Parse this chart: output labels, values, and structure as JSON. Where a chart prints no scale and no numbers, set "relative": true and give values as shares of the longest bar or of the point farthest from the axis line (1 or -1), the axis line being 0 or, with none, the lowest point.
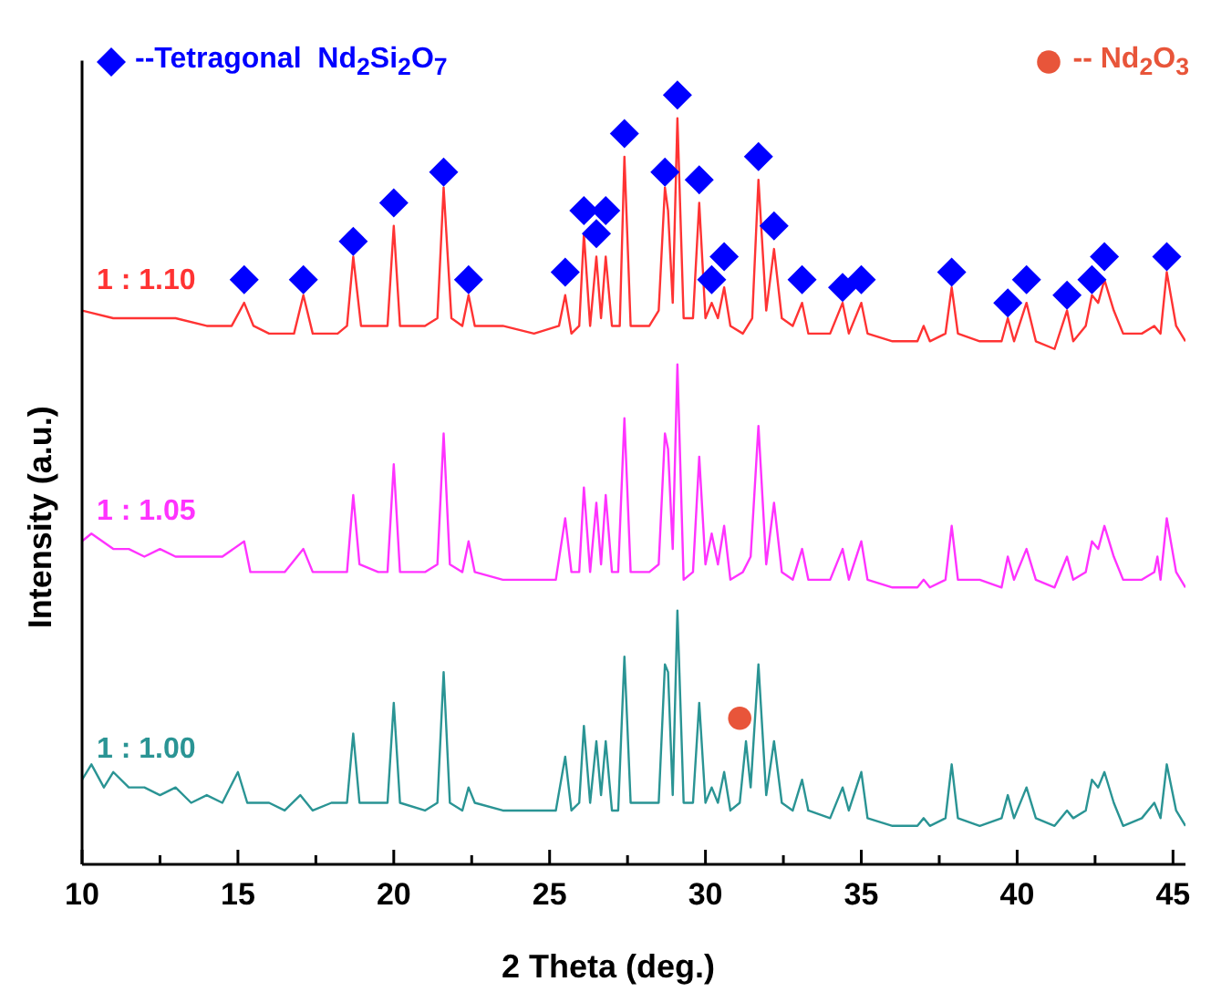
{
  "chart_data": {
    "type": "line",
    "relative": true,
    "xlabel": "2 Theta (deg.)",
    "ylabel": "Intensity (a.u.)",
    "xlim": [
      10,
      45.4
    ],
    "xticks": [
      10,
      {
        "value": 12.5,
        "label": null
      },
      15,
      {
        "value": 17.5,
        "label": null
      },
      20,
      {
        "value": 22.5,
        "label": null
      },
      25,
      {
        "value": 27.5,
        "label": null
      },
      30,
      {
        "value": 32.5,
        "label": null
      },
      35,
      {
        "value": 37.5,
        "label": null
      },
      40,
      {
        "value": 42.5,
        "label": null
      },
      45
    ],
    "legend": "top",
    "grid": false,
    "line_style": "solid",
    "series": [
      {
        "name": "1 : 1.00",
        "color": "#2a9494",
        "x": [
          10,
          10.3,
          10.7,
          11,
          11.5,
          12,
          12.5,
          13,
          13.5,
          14,
          14.5,
          15.0,
          15.3,
          16,
          16.5,
          17,
          17.4,
          18,
          18.5,
          18.7,
          18.9,
          19.5,
          19.8,
          20.0,
          20.2,
          21,
          21.4,
          21.6,
          21.8,
          22.2,
          22.4,
          22.6,
          23.5,
          24.5,
          25.2,
          25.5,
          25.7,
          25.95,
          26.1,
          26.3,
          26.5,
          26.65,
          26.8,
          27.0,
          27.2,
          27.4,
          27.6,
          28.2,
          28.5,
          28.7,
          28.8,
          28.95,
          29.1,
          29.3,
          29.6,
          29.8,
          30.0,
          30.2,
          30.4,
          30.6,
          30.8,
          31.1,
          31.3,
          31.45,
          31.7,
          31.95,
          32.2,
          32.45,
          32.8,
          33.1,
          33.3,
          34.0,
          34.4,
          34.6,
          35.0,
          35.2,
          36,
          36.8,
          37.0,
          37.2,
          37.7,
          37.9,
          38.1,
          38.8,
          39.5,
          39.7,
          39.9,
          40.3,
          40.6,
          41.2,
          41.6,
          41.8,
          42.2,
          42.4,
          42.6,
          42.8,
          43.1,
          43.4,
          44.0,
          44.4,
          44.6,
          44.8,
          45.1,
          45.4
        ],
        "values": [
          0.11,
          0.13,
          0.1,
          0.12,
          0.1,
          0.1,
          0.09,
          0.1,
          0.08,
          0.09,
          0.08,
          0.12,
          0.08,
          0.08,
          0.07,
          0.09,
          0.07,
          0.08,
          0.08,
          0.17,
          0.08,
          0.08,
          0.08,
          0.21,
          0.08,
          0.07,
          0.08,
          0.25,
          0.08,
          0.07,
          0.1,
          0.08,
          0.07,
          0.07,
          0.07,
          0.14,
          0.07,
          0.08,
          0.18,
          0.08,
          0.16,
          0.09,
          0.16,
          0.07,
          0.07,
          0.27,
          0.08,
          0.08,
          0.08,
          0.26,
          0.25,
          0.09,
          0.33,
          0.08,
          0.08,
          0.21,
          0.08,
          0.1,
          0.08,
          0.12,
          0.07,
          0.08,
          0.16,
          0.1,
          0.26,
          0.09,
          0.16,
          0.08,
          0.07,
          0.11,
          0.07,
          0.06,
          0.1,
          0.07,
          0.12,
          0.06,
          0.05,
          0.05,
          0.06,
          0.05,
          0.06,
          0.13,
          0.06,
          0.05,
          0.06,
          0.09,
          0.06,
          0.1,
          0.06,
          0.05,
          0.07,
          0.06,
          0.07,
          0.11,
          0.1,
          0.12,
          0.08,
          0.05,
          0.06,
          0.08,
          0.06,
          0.13,
          0.07,
          0.05
        ]
      },
      {
        "name": "1 : 1.05",
        "color": "#ff33ff",
        "x": [
          10,
          10.3,
          11,
          11.5,
          12,
          12.5,
          13,
          13.5,
          14,
          14.5,
          15.2,
          15.4,
          16,
          16.5,
          17.1,
          17.4,
          18,
          18.5,
          18.7,
          18.9,
          19.5,
          19.8,
          20.0,
          20.2,
          21,
          21.4,
          21.6,
          21.8,
          22.2,
          22.4,
          22.6,
          23.5,
          24.5,
          25.2,
          25.5,
          25.7,
          25.95,
          26.1,
          26.3,
          26.5,
          26.65,
          26.8,
          27.0,
          27.2,
          27.4,
          27.6,
          28.2,
          28.5,
          28.7,
          28.8,
          28.95,
          29.1,
          29.3,
          29.6,
          29.8,
          30.0,
          30.2,
          30.4,
          30.6,
          30.8,
          31.2,
          31.45,
          31.7,
          31.95,
          32.2,
          32.45,
          32.8,
          33.1,
          33.3,
          34.0,
          34.4,
          34.6,
          35.0,
          35.2,
          36,
          36.8,
          37.0,
          37.2,
          37.7,
          37.9,
          38.1,
          38.8,
          39.5,
          39.7,
          39.9,
          40.3,
          40.6,
          41.2,
          41.6,
          41.8,
          42.2,
          42.4,
          42.6,
          42.8,
          43.1,
          43.4,
          44.0,
          44.4,
          44.5,
          44.6,
          44.8,
          45.1,
          45.4
        ],
        "values": [
          0.42,
          0.43,
          0.41,
          0.41,
          0.4,
          0.41,
          0.4,
          0.4,
          0.4,
          0.4,
          0.42,
          0.38,
          0.38,
          0.38,
          0.41,
          0.38,
          0.38,
          0.38,
          0.48,
          0.39,
          0.38,
          0.38,
          0.52,
          0.38,
          0.38,
          0.39,
          0.56,
          0.39,
          0.38,
          0.42,
          0.38,
          0.37,
          0.37,
          0.37,
          0.45,
          0.38,
          0.38,
          0.49,
          0.38,
          0.47,
          0.39,
          0.48,
          0.38,
          0.38,
          0.58,
          0.38,
          0.38,
          0.39,
          0.56,
          0.54,
          0.41,
          0.65,
          0.37,
          0.38,
          0.53,
          0.39,
          0.43,
          0.39,
          0.44,
          0.37,
          0.38,
          0.4,
          0.57,
          0.39,
          0.47,
          0.38,
          0.37,
          0.41,
          0.37,
          0.37,
          0.41,
          0.37,
          0.42,
          0.37,
          0.36,
          0.36,
          0.37,
          0.36,
          0.37,
          0.44,
          0.37,
          0.37,
          0.36,
          0.4,
          0.37,
          0.41,
          0.37,
          0.36,
          0.4,
          0.37,
          0.38,
          0.42,
          0.41,
          0.44,
          0.4,
          0.37,
          0.37,
          0.38,
          0.4,
          0.37,
          0.45,
          0.38,
          0.36
        ]
      },
      {
        "name": "1 : 1.10",
        "color": "#ff3333",
        "x": [
          10,
          11,
          12,
          13,
          14,
          14.8,
          15.2,
          15.5,
          16,
          16.8,
          17.1,
          17.4,
          18.2,
          18.5,
          18.7,
          18.95,
          19.5,
          19.8,
          20.0,
          20.2,
          21.0,
          21.4,
          21.6,
          21.85,
          22.2,
          22.4,
          22.6,
          23.5,
          24.5,
          25.3,
          25.5,
          25.7,
          25.95,
          26.1,
          26.3,
          26.5,
          26.65,
          26.8,
          27.0,
          27.25,
          27.4,
          27.6,
          28.2,
          28.5,
          28.7,
          28.8,
          28.95,
          29.1,
          29.3,
          29.6,
          29.8,
          30.0,
          30.2,
          30.4,
          30.6,
          30.8,
          31.2,
          31.5,
          31.7,
          31.95,
          32.2,
          32.45,
          32.8,
          33.1,
          33.3,
          34.0,
          34.4,
          34.6,
          35.0,
          35.2,
          36,
          36.8,
          37.0,
          37.2,
          37.7,
          37.9,
          38.1,
          38.8,
          39.5,
          39.7,
          39.9,
          40.3,
          40.6,
          41.2,
          41.6,
          41.8,
          42.2,
          42.4,
          42.6,
          42.8,
          43.1,
          43.4,
          44.0,
          44.4,
          44.6,
          44.8,
          45.1,
          45.4
        ],
        "values": [
          0.72,
          0.71,
          0.71,
          0.71,
          0.7,
          0.7,
          0.73,
          0.7,
          0.69,
          0.69,
          0.74,
          0.69,
          0.69,
          0.7,
          0.79,
          0.7,
          0.7,
          0.7,
          0.83,
          0.7,
          0.7,
          0.71,
          0.88,
          0.71,
          0.7,
          0.74,
          0.7,
          0.7,
          0.69,
          0.7,
          0.74,
          0.69,
          0.7,
          0.82,
          0.7,
          0.79,
          0.71,
          0.79,
          0.7,
          0.7,
          0.92,
          0.7,
          0.7,
          0.72,
          0.88,
          0.85,
          0.73,
          0.97,
          0.71,
          0.71,
          0.86,
          0.71,
          0.73,
          0.71,
          0.75,
          0.7,
          0.69,
          0.71,
          0.89,
          0.72,
          0.8,
          0.71,
          0.7,
          0.73,
          0.69,
          0.69,
          0.73,
          0.69,
          0.73,
          0.69,
          0.68,
          0.68,
          0.7,
          0.68,
          0.69,
          0.75,
          0.69,
          0.68,
          0.68,
          0.71,
          0.68,
          0.73,
          0.68,
          0.67,
          0.72,
          0.68,
          0.7,
          0.74,
          0.73,
          0.76,
          0.72,
          0.69,
          0.69,
          0.7,
          0.69,
          0.77,
          0.7,
          0.68
        ]
      },
      {
        "type": "scatter",
        "name": "--Tetragonal  Nd$_{2}$Si$_{2}$O$_{7}$",
        "color": "#0000ff",
        "marker": "diamond",
        "x": [
          15.2,
          17.1,
          18.7,
          20.0,
          21.6,
          22.4,
          25.5,
          26.1,
          26.5,
          26.8,
          27.4,
          28.7,
          29.1,
          29.8,
          30.2,
          30.6,
          31.7,
          32.2,
          33.1,
          34.4,
          35.0,
          37.9,
          39.7,
          40.3,
          41.6,
          42.4,
          42.8,
          44.8
        ],
        "values": [
          0.76,
          0.76,
          0.81,
          0.86,
          0.9,
          0.76,
          0.77,
          0.85,
          0.82,
          0.85,
          0.95,
          0.9,
          1,
          0.89,
          0.76,
          0.79,
          0.92,
          0.83,
          0.76,
          0.75,
          0.76,
          0.77,
          0.73,
          0.76,
          0.74,
          0.76,
          0.79,
          0.79
        ]
      },
      {
        "type": "scatter",
        "name": "-- Nd$_{2}$O$_{3}$",
        "color": "#e8553a",
        "marker": "circle",
        "x": [
          31.1
        ],
        "values": [
          0.19
        ]
      }
    ]
  }
}
